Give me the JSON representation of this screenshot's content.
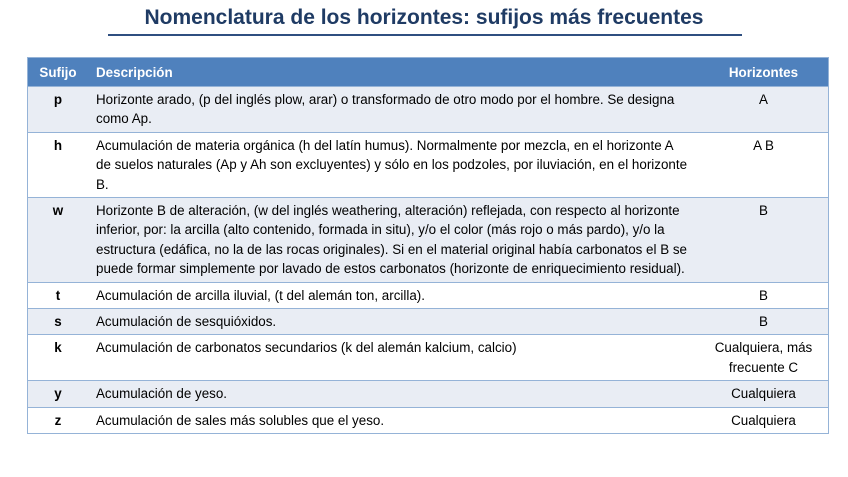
{
  "title": "Nomenclatura de los horizontes: sufijos más frecuentes",
  "table": {
    "headers": [
      "Sufijo",
      "Descripción",
      "Horizontes"
    ],
    "rows": [
      {
        "sufijo": "p",
        "descripcion": "Horizonte arado, (p del inglés plow, arar) o transformado de otro modo por el hombre. Se designa como Ap.",
        "horizontes": "A"
      },
      {
        "sufijo": "h",
        "descripcion": "Acumulación de materia orgánica (h del latín humus). Normalmente por mezcla, en el horizonte A de suelos naturales (Ap y Ah son excluyentes) y sólo en los podzoles, por iluviación, en el horizonte B.",
        "horizontes": "A B"
      },
      {
        "sufijo": "w",
        "descripcion": "Horizonte B de alteración, (w del inglés weathering, alteración) reflejada, con respecto al horizonte inferior, por: la arcilla (alto contenido, formada in situ), y/o el color (más rojo o más pardo), y/o la estructura (edáfica, no la de las rocas originales). Si en el material original había carbonatos el B se puede formar simplemente por lavado de estos carbonatos (horizonte de enriquecimiento residual).",
        "horizontes": "B"
      },
      {
        "sufijo": "t",
        "descripcion": "Acumulación de arcilla iluvial, (t del alemán ton, arcilla).",
        "horizontes": "B"
      },
      {
        "sufijo": "s",
        "descripcion": "Acumulación de sesquióxidos.",
        "horizontes": "B"
      },
      {
        "sufijo": "k",
        "descripcion": "Acumulación de carbonatos secundarios (k del alemán kalcium, calcio)",
        "horizontes": "Cualquiera, más frecuente C"
      },
      {
        "sufijo": "y",
        "descripcion": "Acumulación de yeso.",
        "horizontes": "Cualquiera"
      },
      {
        "sufijo": "z",
        "descripcion": "Acumulación de sales más solubles que el yeso.",
        "horizontes": "Cualquiera"
      }
    ]
  },
  "colors": {
    "header": "#4f81bd",
    "band": "#e9edf4",
    "title": "#1f3b64"
  }
}
